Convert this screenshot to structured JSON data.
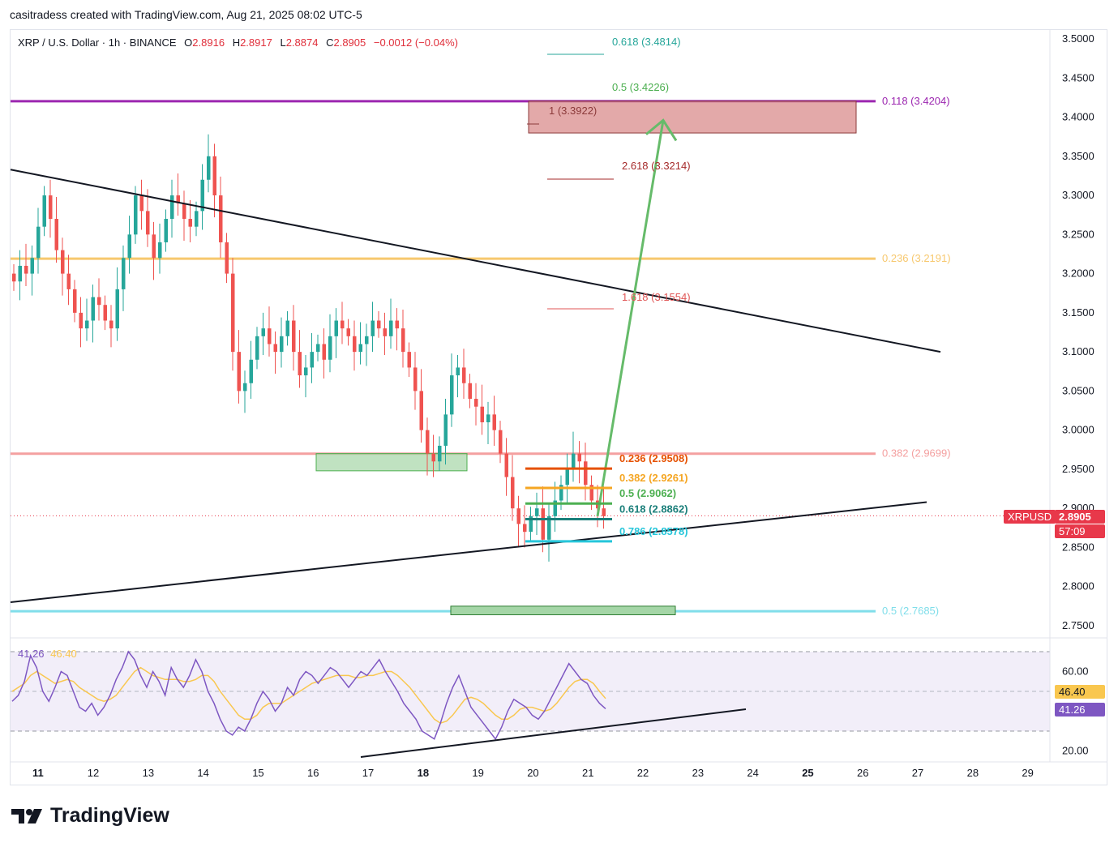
{
  "header": {
    "text": "casitradess created with TradingView.com, Aug 21, 2025 08:02 UTC-5"
  },
  "legend": {
    "symbol": "XRP / U.S. Dollar · 1h · BINANCE",
    "o_label": "O",
    "o_value": "2.8916",
    "h_label": "H",
    "h_value": "2.8917",
    "l_label": "L",
    "l_value": "2.8874",
    "c_label": "C",
    "c_value": "2.8905",
    "change": "−0.0012 (−0.04%)"
  },
  "price_badge": {
    "symbol": "XRPUSD",
    "price": "2.8905",
    "countdown": "57:09"
  },
  "rsi_badges": {
    "ma": "46.40",
    "rsi": "41.26",
    "legend_rsi": "41.26",
    "legend_ma": "46.40"
  },
  "footer": {
    "brand": "TradingView"
  },
  "colors": {
    "up": "#26a69a",
    "down": "#ef5350",
    "accent_red": "#e8384a",
    "purple": "#9c27b0",
    "gold": "#f7c86e",
    "pink": "#f4a0a0",
    "cyan": "#80deea",
    "green_zone": "#a5d6a7",
    "red_zone": "#d98c8c",
    "rsi_line": "#7e57c2",
    "rsi_ma": "#f9c74f"
  },
  "chart_data": {
    "type": "candlestick",
    "title": "XRP / U.S. Dollar · 1h · BINANCE",
    "y_axis": {
      "ticks": [
        "3.5000",
        "3.4500",
        "3.4000",
        "3.3500",
        "3.3000",
        "3.2500",
        "3.2000",
        "3.1500",
        "3.1000",
        "3.0500",
        "3.0000",
        "2.9500",
        "2.9000",
        "2.8500",
        "2.8000",
        "2.7500"
      ],
      "ylim": [
        2.73,
        3.51
      ]
    },
    "x_axis": {
      "ticks": [
        "11",
        "12",
        "13",
        "14",
        "15",
        "16",
        "17",
        "18",
        "19",
        "20",
        "21",
        "22",
        "23",
        "24",
        "25",
        "26",
        "27",
        "28",
        "29"
      ],
      "bold_ticks": [
        "11",
        "18",
        "25"
      ]
    },
    "candles_close": [
      3.19,
      3.21,
      3.2,
      3.22,
      3.26,
      3.3,
      3.27,
      3.23,
      3.2,
      3.18,
      3.15,
      3.13,
      3.14,
      3.17,
      3.16,
      3.14,
      3.13,
      3.18,
      3.22,
      3.25,
      3.3,
      3.28,
      3.25,
      3.22,
      3.24,
      3.27,
      3.3,
      3.29,
      3.27,
      3.26,
      3.28,
      3.32,
      3.35,
      3.3,
      3.24,
      3.2,
      3.1,
      3.05,
      3.06,
      3.09,
      3.12,
      3.13,
      3.11,
      3.1,
      3.12,
      3.14,
      3.1,
      3.07,
      3.08,
      3.1,
      3.11,
      3.09,
      3.12,
      3.14,
      3.13,
      3.12,
      3.1,
      3.11,
      3.12,
      3.14,
      3.13,
      3.12,
      3.14,
      3.13,
      3.1,
      3.08,
      3.05,
      3.0,
      2.97,
      2.96,
      2.98,
      3.02,
      3.07,
      3.08,
      3.06,
      3.04,
      3.03,
      3.01,
      3.02,
      3.0,
      2.97,
      2.94,
      2.9,
      2.88,
      2.87,
      2.89,
      2.9,
      2.86,
      2.89,
      2.91,
      2.93,
      2.95,
      2.97,
      2.96,
      2.93,
      2.91,
      2.9,
      2.89
    ],
    "trendlines": [
      {
        "name": "descending-resistance",
        "points": [
          [
            "Aug 10",
            3.33
          ],
          [
            "Aug 27",
            3.1
          ]
        ]
      },
      {
        "name": "ascending-support",
        "points": [
          [
            "Aug 10",
            2.78
          ],
          [
            "Aug 27",
            2.91
          ]
        ]
      },
      {
        "name": "projection-arrow",
        "points": [
          [
            "Aug 21",
            2.89
          ],
          [
            "Aug 22",
            3.4
          ]
        ]
      }
    ],
    "horizontal_levels": [
      {
        "label": "0.118 (3.4204)",
        "value": 3.4204,
        "color": "#9c27b0"
      },
      {
        "label": "0.236 (3.2191)",
        "value": 3.2191,
        "color": "#f7c86e"
      },
      {
        "label": "0.382 (2.9699)",
        "value": 2.9699,
        "color": "#f4a0a0"
      },
      {
        "label": "0.5 (2.7685)",
        "value": 2.7685,
        "color": "#80deea"
      }
    ],
    "extension_levels": [
      {
        "label": "0.618 (3.4814)",
        "value": 3.4814,
        "color": "#26a69a"
      },
      {
        "label": "0.5 (3.4226)",
        "value": 3.4226,
        "color": "#4caf50"
      },
      {
        "label": "1 (3.3922)",
        "value": 3.3922,
        "color": "#8b3a3a"
      },
      {
        "label": "2.618 (3.3214)",
        "value": 3.3214,
        "color": "#a52a2a"
      },
      {
        "label": "1.618 (3.1554)",
        "value": 3.1554,
        "color": "#e05555"
      }
    ],
    "retracement_levels": [
      {
        "label": "0.236 (2.9508)",
        "value": 2.9508,
        "color": "#e65100"
      },
      {
        "label": "0.382 (2.9261)",
        "value": 2.9261,
        "color": "#f5a623"
      },
      {
        "label": "0.5 (2.9062)",
        "value": 2.9062,
        "color": "#4caf50"
      },
      {
        "label": "0.618 (2.8862)",
        "value": 2.8862,
        "color": "#1b7f7a"
      },
      {
        "label": "0.786 (2.8578)",
        "value": 2.8578,
        "color": "#26c6da"
      }
    ],
    "rsi": {
      "ticks": [
        "60.00",
        "20.00"
      ],
      "values": [
        45,
        48,
        55,
        68,
        62,
        50,
        45,
        52,
        60,
        58,
        50,
        42,
        40,
        44,
        38,
        42,
        48,
        56,
        62,
        70,
        66,
        58,
        52,
        60,
        55,
        48,
        62,
        56,
        52,
        58,
        66,
        60,
        50,
        44,
        36,
        30,
        28,
        32,
        30,
        36,
        44,
        50,
        46,
        40,
        44,
        52,
        48,
        56,
        60,
        58,
        54,
        58,
        62,
        60,
        56,
        52,
        56,
        60,
        58,
        62,
        66,
        60,
        55,
        50,
        44,
        40,
        36,
        30,
        28,
        26,
        34,
        44,
        52,
        58,
        50,
        42,
        38,
        34,
        30,
        26,
        32,
        40,
        46,
        44,
        42,
        38,
        36,
        40,
        46,
        52,
        58,
        64,
        60,
        56,
        54,
        48,
        44,
        41.26
      ],
      "ma_values": [
        50,
        52,
        54,
        58,
        60,
        58,
        56,
        54,
        55,
        56,
        55,
        52,
        50,
        48,
        46,
        45,
        46,
        48,
        52,
        56,
        60,
        62,
        60,
        58,
        57,
        56,
        56,
        56,
        55,
        55,
        56,
        58,
        58,
        55,
        50,
        46,
        42,
        38,
        36,
        36,
        38,
        42,
        44,
        44,
        44,
        46,
        48,
        50,
        52,
        54,
        55,
        56,
        57,
        58,
        58,
        58,
        57,
        57,
        58,
        58,
        59,
        60,
        60,
        58,
        55,
        52,
        48,
        44,
        40,
        36,
        34,
        35,
        38,
        42,
        46,
        47,
        46,
        44,
        41,
        38,
        36,
        36,
        38,
        41,
        42,
        42,
        41,
        40,
        41,
        44,
        48,
        52,
        55,
        56,
        56,
        54,
        50,
        46.4
      ]
    }
  }
}
